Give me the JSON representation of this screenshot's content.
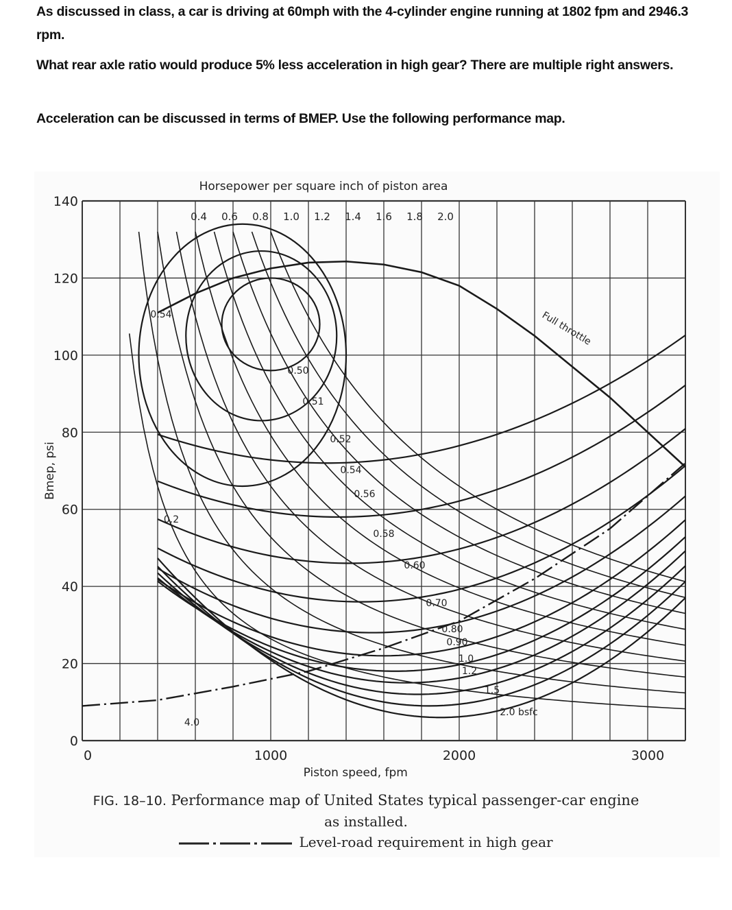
{
  "question": {
    "line1": "As discussed in class, a car is driving at 60mph with the 4-cylinder engine running at 1802 fpm and 2946.3 rpm.",
    "line2": "What rear axle ratio would produce 5% less acceleration in high gear? There are multiple right answers.",
    "line3": "Acceleration can be discussed in terms of BMEP. Use the following performance map."
  },
  "figure": {
    "caption_line1": "FIG. 18–10.",
    "caption_line1_rest": "Performance map of United States typical passenger-car engine",
    "caption_line2": "as installed.",
    "legend_label": "Level-road requirement in high gear"
  },
  "chart_data": {
    "type": "line",
    "title": "Horsepower per square inch of piston area",
    "xlabel": "Piston speed, fpm",
    "ylabel": "Bmep, psi",
    "xlim": [
      0,
      3200
    ],
    "ylim": [
      0,
      140
    ],
    "x_ticks": [
      "0",
      "1000",
      "2000",
      "3000"
    ],
    "y_ticks": [
      "0",
      "20",
      "40",
      "60",
      "80",
      "100",
      "120",
      "140"
    ],
    "grid": true,
    "hp_per_sq_in_labels": [
      "0.4",
      "0.6",
      "0.8",
      "1.0",
      "1.2",
      "1.4",
      "1.6",
      "1.8",
      "2.0"
    ],
    "bsfc_labels": [
      "0.54",
      "0.50",
      "0.51",
      "0.52",
      "0.54",
      "0.56",
      "0.58",
      "0.60",
      "0.70",
      "0.80",
      "0.90",
      "1.0",
      "1.2",
      "1.5",
      "2.0 bsfc",
      "4.0"
    ],
    "other_labels": [
      "0.2",
      "Full throttle"
    ],
    "series": [
      {
        "name": "Full throttle",
        "x": [
          400,
          600,
          800,
          1000,
          1200,
          1400,
          1600,
          1800,
          2000,
          2200,
          2400,
          2600,
          2800,
          3000,
          3200
        ],
        "values": [
          111,
          116,
          120,
          122.5,
          124,
          124.3,
          123.5,
          121.5,
          118,
          112,
          105,
          97,
          89,
          80,
          71
        ]
      },
      {
        "name": "Level-road requirement in high gear",
        "x": [
          0,
          400,
          800,
          1200,
          1600,
          2000,
          2400,
          2800,
          3200
        ],
        "values": [
          9,
          10.5,
          14,
          18,
          24,
          31,
          42,
          55,
          72
        ]
      }
    ],
    "annotations": [
      "Full throttle",
      "2.0 bsfc",
      "4.0",
      "0.2"
    ]
  }
}
